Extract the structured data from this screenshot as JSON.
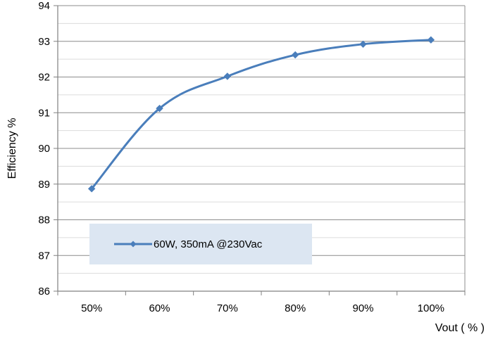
{
  "chart_data": {
    "type": "line",
    "title": "",
    "xlabel": "Vout ( % )",
    "ylabel": "Efficiency %",
    "categories": [
      "50%",
      "60%",
      "70%",
      "80%",
      "90%",
      "100%"
    ],
    "ylim": [
      86,
      94
    ],
    "yticks": [
      86,
      87,
      88,
      89,
      90,
      91,
      92,
      93,
      94
    ],
    "grid": "major and minor horizontal",
    "legend_position": "bottom-left",
    "series": [
      {
        "name": "60W, 350mA @230Vac",
        "color": "#4a7ebb",
        "marker": "diamond",
        "values": [
          88.87,
          91.12,
          92.02,
          92.62,
          92.92,
          93.04
        ]
      }
    ]
  }
}
